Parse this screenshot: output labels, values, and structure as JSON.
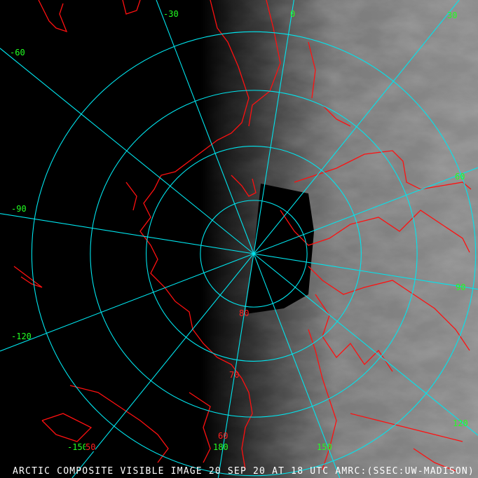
{
  "caption": "ARCTIC COMPOSITE VISIBLE IMAGE 20 SEP 20 AT 18 UTC AMRC:(SSEC:UW-MADISON)",
  "projection": "polar-stereographic-north",
  "colors": {
    "grid": "#00e5ee",
    "coastline": "#ff1010",
    "lon_label": "#22ff22",
    "lat_label": "#ff2020",
    "caption": "#ffffff"
  },
  "longitude_labels": [
    "-30",
    "0",
    "30",
    "60",
    "90",
    "120",
    "150",
    "180",
    "-150",
    "-120",
    "-90",
    "-60"
  ],
  "latitude_labels": [
    "80",
    "70",
    "60",
    "50"
  ],
  "meridians_deg": [
    0,
    30,
    60,
    90,
    120,
    150,
    180,
    -150,
    -120,
    -90,
    -60,
    -30
  ],
  "parallels_deg": [
    80,
    70,
    60,
    50
  ]
}
